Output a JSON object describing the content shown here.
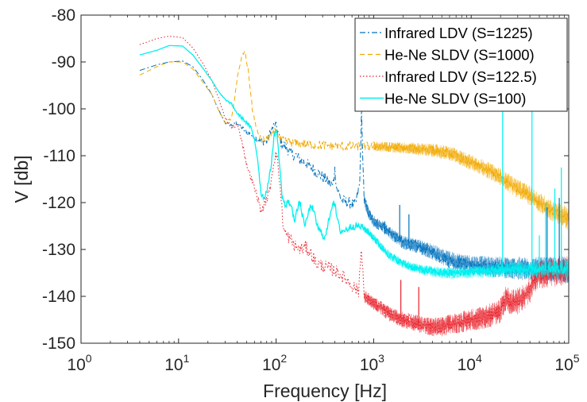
{
  "chart_data": {
    "type": "line",
    "xlabel": "Frequency [Hz]",
    "ylabel": "V [db]",
    "x_scale": "log",
    "xlim": [
      1,
      100000
    ],
    "ylim": [
      -150,
      -80
    ],
    "x_ticks": [
      {
        "base": "10",
        "exp": "0",
        "value": 1
      },
      {
        "base": "10",
        "exp": "1",
        "value": 10
      },
      {
        "base": "10",
        "exp": "2",
        "value": 100
      },
      {
        "base": "10",
        "exp": "3",
        "value": 1000
      },
      {
        "base": "10",
        "exp": "4",
        "value": 10000
      },
      {
        "base": "10",
        "exp": "5",
        "value": 100000
      }
    ],
    "y_ticks": [
      {
        "label": "-80",
        "value": -80
      },
      {
        "label": "-90",
        "value": -90
      },
      {
        "label": "-100",
        "value": -100
      },
      {
        "label": "-110",
        "value": -110
      },
      {
        "label": "-120",
        "value": -120
      },
      {
        "label": "-130",
        "value": -130
      },
      {
        "label": "-140",
        "value": -140
      },
      {
        "label": "-150",
        "value": -150
      }
    ],
    "grid": false,
    "legend_position": "top-right",
    "series": [
      {
        "name": "Infrared LDV (S=1225)",
        "color": "#0072BD",
        "line_style": "dash-dot",
        "x": [
          4,
          6,
          8,
          11,
          14,
          18,
          22,
          26,
          30,
          35,
          40,
          47,
          55,
          62,
          70,
          80,
          90,
          97,
          103,
          112,
          125,
          140,
          160,
          180,
          200,
          230,
          260,
          300,
          340,
          380,
          400,
          420,
          470,
          550,
          650,
          720,
          750,
          800,
          900,
          1000,
          1300,
          1600,
          2000,
          2500,
          3000,
          3500,
          4000,
          5000,
          6000,
          8000,
          10000,
          13000,
          16000,
          20000,
          25000,
          30000,
          40000,
          50000,
          60000,
          70000,
          80000,
          90000,
          100000
        ],
        "y": [
          -91.8,
          -90.6,
          -90,
          -89.8,
          -91,
          -94,
          -97,
          -100.5,
          -103,
          -103.5,
          -103,
          -104.5,
          -105.5,
          -106.2,
          -107,
          -107,
          -104.5,
          -103.2,
          -104.5,
          -107.2,
          -108,
          -109.5,
          -110,
          -111,
          -111.5,
          -112.5,
          -113.5,
          -114.5,
          -115.5,
          -116.5,
          -113,
          -117,
          -119.5,
          -120,
          -120.5,
          -116,
          -101,
          -119.5,
          -122.5,
          -124,
          -125.5,
          -127,
          -128.5,
          -129,
          -129.5,
          -130,
          -130.5,
          -131.5,
          -132.2,
          -132.8,
          -133.2,
          -133.5,
          -133.7,
          -133.8,
          -134,
          -134,
          -134.2,
          -134.2,
          -134.3,
          -134.3,
          -134.3,
          -134.3,
          -134.3
        ]
      },
      {
        "name": "He-Ne SLDV (S=1000)",
        "color": "#F2A900",
        "line_style": "dashed",
        "x": [
          4,
          6,
          8,
          11,
          14,
          18,
          22,
          26,
          30,
          35,
          40,
          45,
          48,
          52,
          57,
          63,
          70,
          80,
          90,
          100,
          110,
          125,
          150,
          200,
          300,
          500,
          1000,
          2000,
          4000,
          6000,
          8000,
          10000,
          13000,
          16000,
          20000,
          25000,
          30000,
          40000,
          50000,
          60000,
          70000,
          80000,
          90000,
          100000
        ],
        "y": [
          -92.8,
          -91,
          -90,
          -90,
          -91.5,
          -94.5,
          -97,
          -100.5,
          -103,
          -102,
          -93.5,
          -88.5,
          -88,
          -92,
          -100,
          -104.5,
          -106.5,
          -106.5,
          -105.5,
          -104.5,
          -106.5,
          -107,
          -107.3,
          -107.5,
          -107.8,
          -108,
          -108,
          -108.3,
          -108.8,
          -109.5,
          -110.5,
          -111.5,
          -112.5,
          -113.5,
          -114.5,
          -116,
          -117,
          -118.5,
          -120,
          -121,
          -122,
          -122.5,
          -123,
          -123.5
        ]
      },
      {
        "name": "Infrared LDV (S=122.5)",
        "color": "#E8202A",
        "line_style": "dotted",
        "x": [
          4,
          6,
          8,
          11,
          14,
          18,
          22,
          26,
          30,
          35,
          40,
          45,
          50,
          55,
          60,
          65,
          70,
          75,
          85,
          95,
          100,
          105,
          120,
          140,
          160,
          180,
          200,
          230,
          260,
          300,
          350,
          400,
          500,
          700,
          750,
          800,
          1000,
          1200,
          1500,
          2000,
          2500,
          3000,
          4000,
          5000,
          6000,
          8000,
          10000,
          13000,
          16000,
          20000,
          23000,
          25000,
          30000,
          35000,
          40000,
          45000,
          50000,
          60000,
          70000,
          80000,
          90000,
          100000
        ],
        "y": [
          -86.3,
          -85,
          -84.5,
          -84.8,
          -87,
          -90.5,
          -94,
          -98,
          -102,
          -104,
          -103.5,
          -107,
          -112,
          -114.5,
          -117,
          -119,
          -122,
          -120.5,
          -118,
          -111,
          -109.5,
          -112,
          -126,
          -128,
          -129.5,
          -130,
          -129.5,
          -131,
          -133,
          -133.5,
          -134,
          -134.5,
          -136,
          -139,
          -129,
          -140,
          -141.5,
          -142.5,
          -144,
          -145,
          -145.5,
          -146,
          -146.5,
          -146.5,
          -146,
          -145.5,
          -145,
          -144.5,
          -144,
          -143,
          -140,
          -141.5,
          -141,
          -140,
          -138.5,
          -136.5,
          -135.5,
          -135,
          -134.8,
          -134.6,
          -134.5,
          -134.5
        ]
      },
      {
        "name": "He-Ne SLDV (S=100)",
        "color": "#00F0F0",
        "line_style": "solid",
        "x": [
          4,
          6,
          8,
          11,
          14,
          18,
          22,
          26,
          30,
          35,
          40,
          45,
          50,
          55,
          60,
          65,
          70,
          75,
          80,
          88,
          95,
          100,
          105,
          115,
          125,
          135,
          145,
          155,
          165,
          175,
          185,
          200,
          215,
          230,
          250,
          270,
          290,
          320,
          360,
          390,
          420,
          450,
          500,
          600,
          700,
          800,
          900,
          1000,
          1200,
          1500,
          2000,
          2500,
          3000,
          4000,
          5000,
          6000,
          8000,
          10000,
          13000,
          16000,
          20000,
          25000,
          30000,
          40000,
          50000,
          60000,
          70000,
          80000,
          90000,
          100000
        ],
        "y": [
          -88.5,
          -87.5,
          -86.5,
          -86.6,
          -88.5,
          -91.5,
          -94,
          -96.5,
          -98,
          -99,
          -101,
          -102,
          -103,
          -104,
          -106.5,
          -111,
          -118,
          -119,
          -117.5,
          -113,
          -106,
          -104.5,
          -108,
          -118.5,
          -121,
          -119.5,
          -121.5,
          -123.5,
          -121.5,
          -120,
          -122.5,
          -125,
          -122,
          -120.5,
          -123,
          -125.5,
          -126.5,
          -127.5,
          -122,
          -119.5,
          -123,
          -126,
          -126,
          -125,
          -125,
          -125.5,
          -126.5,
          -127.5,
          -129.5,
          -131.5,
          -133,
          -133.8,
          -134.3,
          -134.7,
          -135,
          -135,
          -134.9,
          -134.8,
          -134.7,
          -134.5,
          -134.4,
          -134.3,
          -134.3,
          -134.3,
          -134.3,
          -134.2,
          -134.2,
          -134.2,
          -134.2,
          -134.2
        ]
      }
    ],
    "spikes": [
      {
        "series": 3,
        "x": 21000,
        "y_top": -100,
        "y_base": -134.3
      },
      {
        "series": 3,
        "x": 42000,
        "y_top": -100,
        "y_base": -134.3
      },
      {
        "series": 3,
        "x": 50000,
        "y_top": -127,
        "y_base": -134.3
      },
      {
        "series": 3,
        "x": 58000,
        "y_top": -120,
        "y_base": -134.3
      },
      {
        "series": 3,
        "x": 72000,
        "y_top": -117,
        "y_base": -134.3
      },
      {
        "series": 3,
        "x": 84000,
        "y_top": -112.5,
        "y_base": -134.3
      },
      {
        "series": 0,
        "x": 1850,
        "y_top": -120.5,
        "y_base": -128
      },
      {
        "series": 0,
        "x": 2300,
        "y_top": -122.5,
        "y_base": -128.8
      },
      {
        "series": 0,
        "x": 1300,
        "y_top": -124,
        "y_base": -126
      },
      {
        "series": 0,
        "x": 60000,
        "y_top": -121,
        "y_base": -134.3
      },
      {
        "series": 0,
        "x": 80000,
        "y_top": -119,
        "y_base": -134.3
      },
      {
        "series": 2,
        "x": 1900,
        "y_top": -136.5,
        "y_base": -144.5
      },
      {
        "series": 2,
        "x": 2900,
        "y_top": -138,
        "y_base": -145.8
      }
    ]
  }
}
